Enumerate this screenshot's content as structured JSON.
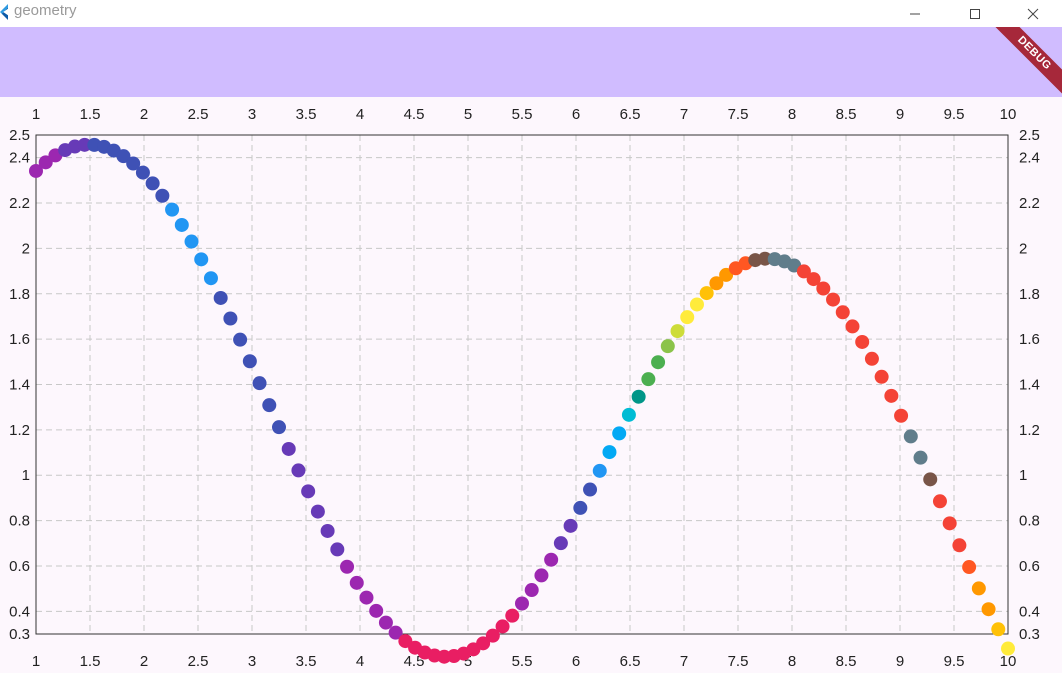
{
  "window": {
    "title": "geometry"
  },
  "banner": {
    "label": "DEBUG"
  },
  "chart_data": {
    "type": "scatter",
    "xlim": [
      1,
      10
    ],
    "ylim": [
      0.3,
      2.5
    ],
    "x_ticks": [
      "1",
      "1.5",
      "2",
      "2.5",
      "3",
      "3.5",
      "4",
      "4.5",
      "5",
      "5.5",
      "6",
      "6.5",
      "7",
      "7.5",
      "8",
      "8.5",
      "9",
      "9.5",
      "10"
    ],
    "y_ticks": [
      "0.3",
      "0.4",
      "0.6",
      "0.8",
      "1",
      "1.2",
      "1.4",
      "1.6",
      "1.8",
      "2",
      "2.2",
      "2.4",
      "2.5"
    ],
    "x_tick_values": [
      1,
      1.5,
      2,
      2.5,
      3,
      3.5,
      4,
      4.5,
      5,
      5.5,
      6,
      6.5,
      7,
      7.5,
      8,
      8.5,
      9,
      9.5,
      10
    ],
    "y_tick_values": [
      0.3,
      0.4,
      0.6,
      0.8,
      1,
      1.2,
      1.4,
      1.6,
      1.8,
      2,
      2.2,
      2.4,
      2.5
    ],
    "grid": true,
    "x_axes": [
      "top",
      "bottom"
    ],
    "y_axes": [
      "left",
      "right"
    ],
    "function": "y = sin(x) + 1.5 - 0.08*(x-1)",
    "x_start": 1,
    "x_end": 10,
    "x_step": 0.09,
    "palette": [
      "#9c27b0",
      "#673ab7",
      "#3f51b5",
      "#2196f3",
      "#03a9f4",
      "#00bcd4",
      "#009688",
      "#4caf50",
      "#8bc34a",
      "#cddc39",
      "#ffeb3b",
      "#ffc107",
      "#ff9800",
      "#ff5722",
      "#795548",
      "#607d8b",
      "#f44336",
      "#e91e63"
    ],
    "color_sequence": [
      0,
      0,
      0,
      1,
      1,
      1,
      2,
      2,
      2,
      2,
      2,
      2,
      2,
      2,
      3,
      3,
      3,
      3,
      3,
      2,
      2,
      2,
      2,
      2,
      2,
      2,
      1,
      1,
      1,
      1,
      1,
      1,
      0,
      0,
      0,
      0,
      0,
      0,
      17,
      17,
      17,
      17,
      17,
      17,
      17,
      17,
      17,
      17,
      17,
      17,
      0,
      0,
      0,
      0,
      1,
      1,
      2,
      2,
      3,
      4,
      4,
      5,
      6,
      7,
      7,
      8,
      9,
      10,
      10,
      11,
      12,
      12,
      13,
      13,
      14,
      14,
      15,
      15,
      15,
      16,
      16,
      16,
      16,
      16,
      16,
      16,
      16,
      16,
      16,
      16,
      15,
      15,
      14,
      16,
      16,
      16,
      13,
      12,
      12,
      11,
      10,
      10,
      9,
      8,
      7
    ]
  }
}
